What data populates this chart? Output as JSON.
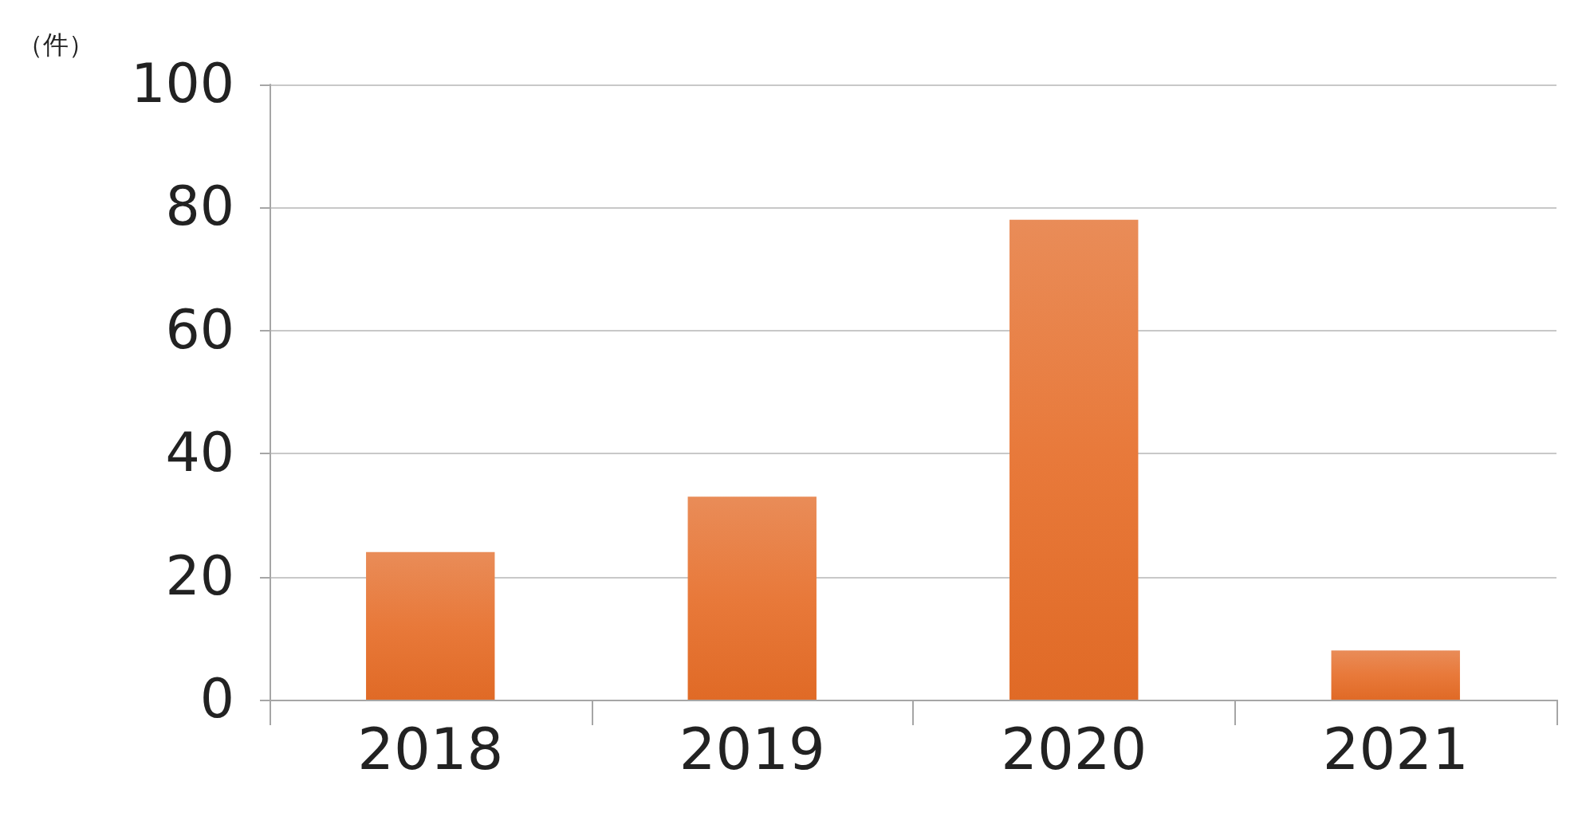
{
  "chart_data": {
    "type": "bar",
    "ylabel": "（件）",
    "categories": [
      "2018",
      "2019",
      "2020",
      "2021"
    ],
    "values": [
      24,
      33,
      78,
      8
    ],
    "color": "#e8793a",
    "ylim": [
      0,
      100
    ],
    "yticks": [
      0,
      20,
      40,
      60,
      80,
      100
    ],
    "grid": "y"
  }
}
